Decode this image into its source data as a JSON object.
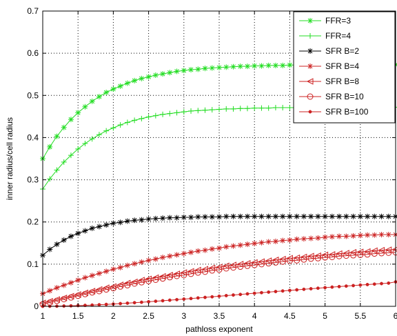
{
  "chart_data": {
    "type": "line",
    "title": "",
    "xlabel": "pathloss exponent",
    "ylabel": "inner radius/cell radius",
    "xlim": [
      1,
      6
    ],
    "ylim": [
      0,
      0.7
    ],
    "xticks": [
      "1",
      "1.5",
      "2",
      "2.5",
      "3",
      "3.5",
      "4",
      "4.5",
      "5",
      "5.5",
      "6"
    ],
    "yticks": [
      "0",
      "0.1",
      "0.2",
      "0.3",
      "0.4",
      "0.5",
      "0.6",
      "0.7"
    ],
    "grid": true,
    "legend_position": "top-right",
    "series": [
      {
        "name": "FFR=3",
        "color": "#22dd22",
        "marker": "star",
        "x": [
          1,
          1.1,
          1.2,
          1.3,
          1.4,
          1.5,
          1.6,
          1.7,
          1.8,
          1.9,
          2,
          2.1,
          2.2,
          2.3,
          2.4,
          2.5,
          2.6,
          2.7,
          2.8,
          2.9,
          3,
          3.1,
          3.2,
          3.3,
          3.4,
          3.5,
          3.6,
          3.7,
          3.8,
          3.9,
          4,
          4.1,
          4.2,
          4.3,
          4.4,
          4.5,
          4.6,
          4.7,
          4.8,
          4.9,
          5,
          5.1,
          5.2,
          5.3,
          5.4,
          5.5,
          5.6,
          5.7,
          5.8,
          5.9,
          6
        ],
        "y": [
          0.35,
          0.378,
          0.403,
          0.424,
          0.443,
          0.459,
          0.473,
          0.486,
          0.497,
          0.507,
          0.515,
          0.522,
          0.529,
          0.535,
          0.54,
          0.544,
          0.548,
          0.551,
          0.554,
          0.557,
          0.559,
          0.561,
          0.562,
          0.564,
          0.565,
          0.566,
          0.567,
          0.568,
          0.569,
          0.569,
          0.57,
          0.57,
          0.571,
          0.571,
          0.571,
          0.572,
          0.572,
          0.572,
          0.572,
          0.572,
          0.573,
          0.573,
          0.573,
          0.573,
          0.573,
          0.573,
          0.573,
          0.573,
          0.573,
          0.573,
          0.573
        ]
      },
      {
        "name": "FFR=4",
        "color": "#22dd22",
        "marker": "plus",
        "x": [
          1,
          1.1,
          1.2,
          1.3,
          1.4,
          1.5,
          1.6,
          1.7,
          1.8,
          1.9,
          2,
          2.1,
          2.2,
          2.3,
          2.4,
          2.5,
          2.6,
          2.7,
          2.8,
          2.9,
          3,
          3.1,
          3.2,
          3.3,
          3.4,
          3.5,
          3.6,
          3.7,
          3.8,
          3.9,
          4,
          4.1,
          4.2,
          4.3,
          4.4,
          4.5,
          4.6,
          4.7,
          4.8,
          4.9,
          5,
          5.1,
          5.2,
          5.3,
          5.4,
          5.5,
          5.6,
          5.7,
          5.8,
          5.9,
          6
        ],
        "y": [
          0.278,
          0.302,
          0.323,
          0.342,
          0.358,
          0.373,
          0.386,
          0.397,
          0.407,
          0.416,
          0.423,
          0.43,
          0.436,
          0.441,
          0.445,
          0.449,
          0.452,
          0.455,
          0.457,
          0.459,
          0.461,
          0.463,
          0.464,
          0.465,
          0.466,
          0.467,
          0.468,
          0.468,
          0.469,
          0.469,
          0.47,
          0.47,
          0.47,
          0.471,
          0.471,
          0.471,
          0.471,
          0.471,
          0.471,
          0.472,
          0.472,
          0.472,
          0.472,
          0.472,
          0.472,
          0.472,
          0.472,
          0.472,
          0.472,
          0.472,
          0.472
        ]
      },
      {
        "name": "SFR B=2",
        "color": "#000000",
        "marker": "star",
        "x": [
          1,
          1.1,
          1.2,
          1.3,
          1.4,
          1.5,
          1.6,
          1.7,
          1.8,
          1.9,
          2,
          2.1,
          2.2,
          2.3,
          2.4,
          2.5,
          2.6,
          2.7,
          2.8,
          2.9,
          3,
          3.1,
          3.2,
          3.3,
          3.4,
          3.5,
          3.6,
          3.7,
          3.8,
          3.9,
          4,
          4.1,
          4.2,
          4.3,
          4.4,
          4.5,
          4.6,
          4.7,
          4.8,
          4.9,
          5,
          5.1,
          5.2,
          5.3,
          5.4,
          5.5,
          5.6,
          5.7,
          5.8,
          5.9,
          6
        ],
        "y": [
          0.121,
          0.135,
          0.147,
          0.157,
          0.166,
          0.173,
          0.179,
          0.185,
          0.189,
          0.193,
          0.197,
          0.199,
          0.202,
          0.204,
          0.205,
          0.207,
          0.208,
          0.209,
          0.21,
          0.21,
          0.211,
          0.211,
          0.212,
          0.212,
          0.212,
          0.212,
          0.213,
          0.213,
          0.213,
          0.213,
          0.213,
          0.213,
          0.213,
          0.213,
          0.213,
          0.213,
          0.213,
          0.213,
          0.213,
          0.213,
          0.213,
          0.213,
          0.213,
          0.213,
          0.213,
          0.213,
          0.213,
          0.213,
          0.213,
          0.213,
          0.213
        ]
      },
      {
        "name": "SFR B=4",
        "color": "#cc2222",
        "marker": "star",
        "x": [
          1,
          1.1,
          1.2,
          1.3,
          1.4,
          1.5,
          1.6,
          1.7,
          1.8,
          1.9,
          2,
          2.1,
          2.2,
          2.3,
          2.4,
          2.5,
          2.6,
          2.7,
          2.8,
          2.9,
          3,
          3.1,
          3.2,
          3.3,
          3.4,
          3.5,
          3.6,
          3.7,
          3.8,
          3.9,
          4,
          4.1,
          4.2,
          4.3,
          4.4,
          4.5,
          4.6,
          4.7,
          4.8,
          4.9,
          5,
          5.1,
          5.2,
          5.3,
          5.4,
          5.5,
          5.6,
          5.7,
          5.8,
          5.9,
          6
        ],
        "y": [
          0.03,
          0.037,
          0.044,
          0.05,
          0.056,
          0.062,
          0.068,
          0.073,
          0.078,
          0.083,
          0.088,
          0.092,
          0.097,
          0.101,
          0.105,
          0.109,
          0.112,
          0.116,
          0.119,
          0.122,
          0.125,
          0.128,
          0.131,
          0.133,
          0.136,
          0.138,
          0.141,
          0.143,
          0.145,
          0.147,
          0.149,
          0.151,
          0.153,
          0.154,
          0.156,
          0.157,
          0.159,
          0.16,
          0.161,
          0.162,
          0.164,
          0.165,
          0.166,
          0.166,
          0.167,
          0.168,
          0.169,
          0.169,
          0.17,
          0.17,
          0.17
        ]
      },
      {
        "name": "SFR B=8",
        "color": "#cc2222",
        "marker": "triangle-left",
        "x": [
          1,
          1.1,
          1.2,
          1.3,
          1.4,
          1.5,
          1.6,
          1.7,
          1.8,
          1.9,
          2,
          2.1,
          2.2,
          2.3,
          2.4,
          2.5,
          2.6,
          2.7,
          2.8,
          2.9,
          3,
          3.1,
          3.2,
          3.3,
          3.4,
          3.5,
          3.6,
          3.7,
          3.8,
          3.9,
          4,
          4.1,
          4.2,
          4.3,
          4.4,
          4.5,
          4.6,
          4.7,
          4.8,
          4.9,
          5,
          5.1,
          5.2,
          5.3,
          5.4,
          5.5,
          5.6,
          5.7,
          5.8,
          5.9,
          6
        ],
        "y": [
          0.008,
          0.012,
          0.016,
          0.02,
          0.024,
          0.028,
          0.032,
          0.036,
          0.04,
          0.044,
          0.047,
          0.051,
          0.055,
          0.058,
          0.062,
          0.065,
          0.068,
          0.071,
          0.074,
          0.077,
          0.08,
          0.083,
          0.086,
          0.088,
          0.091,
          0.093,
          0.096,
          0.098,
          0.1,
          0.102,
          0.104,
          0.106,
          0.108,
          0.11,
          0.112,
          0.114,
          0.115,
          0.117,
          0.119,
          0.12,
          0.122,
          0.123,
          0.125,
          0.126,
          0.128,
          0.129,
          0.13,
          0.132,
          0.133,
          0.134,
          0.135
        ]
      },
      {
        "name": "SFR B=10",
        "color": "#cc2222",
        "marker": "circle",
        "x": [
          1,
          1.1,
          1.2,
          1.3,
          1.4,
          1.5,
          1.6,
          1.7,
          1.8,
          1.9,
          2,
          2.1,
          2.2,
          2.3,
          2.4,
          2.5,
          2.6,
          2.7,
          2.8,
          2.9,
          3,
          3.1,
          3.2,
          3.3,
          3.4,
          3.5,
          3.6,
          3.7,
          3.8,
          3.9,
          4,
          4.1,
          4.2,
          4.3,
          4.4,
          4.5,
          4.6,
          4.7,
          4.8,
          4.9,
          5,
          5.1,
          5.2,
          5.3,
          5.4,
          5.5,
          5.6,
          5.7,
          5.8,
          5.9,
          6
        ],
        "y": [
          0.005,
          0.009,
          0.013,
          0.017,
          0.021,
          0.025,
          0.029,
          0.033,
          0.036,
          0.04,
          0.043,
          0.047,
          0.05,
          0.054,
          0.057,
          0.06,
          0.063,
          0.066,
          0.069,
          0.072,
          0.074,
          0.077,
          0.08,
          0.082,
          0.085,
          0.087,
          0.09,
          0.092,
          0.094,
          0.096,
          0.098,
          0.1,
          0.102,
          0.104,
          0.106,
          0.108,
          0.109,
          0.111,
          0.113,
          0.114,
          0.116,
          0.117,
          0.119,
          0.12,
          0.121,
          0.122,
          0.123,
          0.125,
          0.126,
          0.127,
          0.128
        ]
      },
      {
        "name": "SFR B=100",
        "color": "#cc2222",
        "marker": "dot",
        "x": [
          1,
          1.1,
          1.2,
          1.3,
          1.4,
          1.5,
          1.6,
          1.7,
          1.8,
          1.9,
          2,
          2.1,
          2.2,
          2.3,
          2.4,
          2.5,
          2.6,
          2.7,
          2.8,
          2.9,
          3,
          3.1,
          3.2,
          3.3,
          3.4,
          3.5,
          3.6,
          3.7,
          3.8,
          3.9,
          4,
          4.1,
          4.2,
          4.3,
          4.4,
          4.5,
          4.6,
          4.7,
          4.8,
          4.9,
          5,
          5.1,
          5.2,
          5.3,
          5.4,
          5.5,
          5.6,
          5.7,
          5.8,
          5.9,
          6
        ],
        "y": [
          0,
          0.0002,
          0.0004,
          0.0008,
          0.0012,
          0.0017,
          0.0023,
          0.003,
          0.0038,
          0.0046,
          0.0055,
          0.0065,
          0.0075,
          0.0086,
          0.0097,
          0.0109,
          0.0121,
          0.0133,
          0.0146,
          0.0159,
          0.0172,
          0.0185,
          0.0199,
          0.0212,
          0.0226,
          0.024,
          0.0254,
          0.0268,
          0.0282,
          0.0296,
          0.031,
          0.0324,
          0.0337,
          0.0351,
          0.0364,
          0.0378,
          0.0391,
          0.0404,
          0.0417,
          0.043,
          0.0443,
          0.0456,
          0.0468,
          0.048,
          0.0492,
          0.0504,
          0.0516,
          0.0527,
          0.0539,
          0.055,
          0.058
        ]
      }
    ]
  }
}
